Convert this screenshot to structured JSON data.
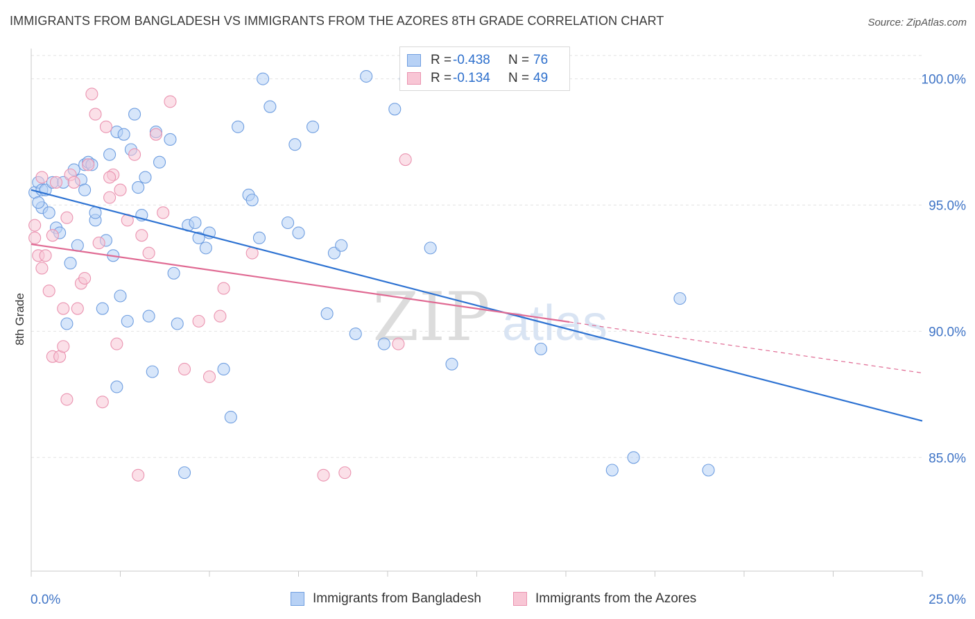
{
  "header": {
    "title": "IMMIGRANTS FROM BANGLADESH VS IMMIGRANTS FROM THE AZORES 8TH GRADE CORRELATION CHART",
    "source": "Source: ZipAtlas.com"
  },
  "stats": {
    "rows": [
      {
        "r_label": "R =",
        "r_value": "-0.438",
        "n_label": "N =",
        "n_value": "76"
      },
      {
        "r_label": "R =",
        "r_value": "-0.134",
        "n_label": "N =",
        "n_value": "49"
      }
    ]
  },
  "legend": {
    "items": [
      "Immigrants from Bangladesh",
      "Immigrants from the Azores"
    ]
  },
  "watermark": {
    "zip": "ZIP",
    "atlas": "atlas"
  },
  "colors": {
    "series1_fill": "#b7d1f5",
    "series1_stroke": "#6f9ee0",
    "series1_line": "#2d72d2",
    "series2_fill": "#f8c6d5",
    "series2_stroke": "#ea93b0",
    "series2_line": "#e06a93",
    "tick_label": "#3f74c6",
    "grid": "#e2e2e2"
  },
  "chart_data": {
    "type": "scatter",
    "title": "IMMIGRANTS FROM BANGLADESH VS IMMIGRANTS FROM THE AZORES 8TH GRADE CORRELATION CHART",
    "xlabel": "",
    "ylabel": "8th Grade",
    "xlim": [
      0,
      25
    ],
    "ylim": [
      80.5,
      101.2
    ],
    "x_tick_labels": [
      "0.0%",
      "25.0%"
    ],
    "y_ticks": [
      85,
      90,
      95,
      100
    ],
    "y_tick_labels": [
      "85.0%",
      "90.0%",
      "95.0%",
      "100.0%"
    ],
    "grid": true,
    "legend_position": "bottom",
    "series": [
      {
        "name": "Immigrants from Bangladesh",
        "r": -0.438,
        "n": 76,
        "trend": {
          "x": [
            0,
            25
          ],
          "y": [
            95.6,
            86.45
          ],
          "dashed_from": null
        },
        "points": [
          [
            0.1,
            95.5
          ],
          [
            0.2,
            95.9
          ],
          [
            0.3,
            95.6
          ],
          [
            0.3,
            94.9
          ],
          [
            0.4,
            95.6
          ],
          [
            0.5,
            94.7
          ],
          [
            0.6,
            95.9
          ],
          [
            0.7,
            94.1
          ],
          [
            0.8,
            93.9
          ],
          [
            0.9,
            95.9
          ],
          [
            1.0,
            90.3
          ],
          [
            1.1,
            92.7
          ],
          [
            1.2,
            96.4
          ],
          [
            1.3,
            93.4
          ],
          [
            1.4,
            96.0
          ],
          [
            1.5,
            96.6
          ],
          [
            1.5,
            95.6
          ],
          [
            1.6,
            96.7
          ],
          [
            1.7,
            96.6
          ],
          [
            1.8,
            94.4
          ],
          [
            1.8,
            94.7
          ],
          [
            2.0,
            90.9
          ],
          [
            2.1,
            93.6
          ],
          [
            2.2,
            97.0
          ],
          [
            2.3,
            93.0
          ],
          [
            2.4,
            87.8
          ],
          [
            2.4,
            97.9
          ],
          [
            2.5,
            91.4
          ],
          [
            2.6,
            97.8
          ],
          [
            2.7,
            90.4
          ],
          [
            2.8,
            97.2
          ],
          [
            2.9,
            98.6
          ],
          [
            3.0,
            95.7
          ],
          [
            3.1,
            94.6
          ],
          [
            3.2,
            96.1
          ],
          [
            3.3,
            90.6
          ],
          [
            3.4,
            88.4
          ],
          [
            3.5,
            97.9
          ],
          [
            3.6,
            96.7
          ],
          [
            3.9,
            97.6
          ],
          [
            4.0,
            92.3
          ],
          [
            4.1,
            90.3
          ],
          [
            4.3,
            84.4
          ],
          [
            4.4,
            94.2
          ],
          [
            4.6,
            94.3
          ],
          [
            4.7,
            93.7
          ],
          [
            4.9,
            93.3
          ],
          [
            5.0,
            93.9
          ],
          [
            5.4,
            88.5
          ],
          [
            5.6,
            86.6
          ],
          [
            5.8,
            98.1
          ],
          [
            6.1,
            95.4
          ],
          [
            6.2,
            95.2
          ],
          [
            6.4,
            93.7
          ],
          [
            6.5,
            100.0
          ],
          [
            6.7,
            98.9
          ],
          [
            7.2,
            94.3
          ],
          [
            7.4,
            97.4
          ],
          [
            7.5,
            93.9
          ],
          [
            7.9,
            98.1
          ],
          [
            8.3,
            90.7
          ],
          [
            8.5,
            93.1
          ],
          [
            8.7,
            93.4
          ],
          [
            9.1,
            89.9
          ],
          [
            9.4,
            100.1
          ],
          [
            9.9,
            89.5
          ],
          [
            10.2,
            98.8
          ],
          [
            10.5,
            100.0
          ],
          [
            11.2,
            93.3
          ],
          [
            11.8,
            88.7
          ],
          [
            14.3,
            89.3
          ],
          [
            16.3,
            84.5
          ],
          [
            16.9,
            85.0
          ],
          [
            18.2,
            91.3
          ],
          [
            19.0,
            84.5
          ],
          [
            0.2,
            95.1
          ]
        ]
      },
      {
        "name": "Immigrants from the Azores",
        "r": -0.134,
        "n": 49,
        "trend": {
          "x": [
            0,
            25
          ],
          "y": [
            93.45,
            88.35
          ],
          "dashed_from": 15.1
        },
        "points": [
          [
            0.1,
            94.2
          ],
          [
            0.1,
            93.7
          ],
          [
            0.2,
            93.0
          ],
          [
            0.3,
            92.5
          ],
          [
            0.3,
            96.1
          ],
          [
            0.4,
            93.0
          ],
          [
            0.5,
            91.6
          ],
          [
            0.6,
            89.0
          ],
          [
            0.6,
            93.8
          ],
          [
            0.7,
            95.9
          ],
          [
            0.8,
            89.0
          ],
          [
            0.9,
            89.4
          ],
          [
            1.0,
            87.3
          ],
          [
            1.0,
            94.5
          ],
          [
            1.1,
            96.2
          ],
          [
            1.2,
            95.9
          ],
          [
            1.3,
            90.9
          ],
          [
            1.4,
            91.9
          ],
          [
            1.5,
            92.1
          ],
          [
            1.7,
            99.4
          ],
          [
            1.8,
            98.6
          ],
          [
            1.9,
            93.5
          ],
          [
            2.0,
            87.2
          ],
          [
            2.1,
            98.1
          ],
          [
            2.2,
            95.3
          ],
          [
            2.3,
            96.2
          ],
          [
            2.4,
            89.5
          ],
          [
            2.5,
            95.6
          ],
          [
            2.7,
            94.4
          ],
          [
            2.9,
            97.0
          ],
          [
            3.0,
            84.3
          ],
          [
            3.1,
            93.8
          ],
          [
            3.3,
            93.1
          ],
          [
            3.5,
            97.8
          ],
          [
            3.7,
            94.7
          ],
          [
            3.9,
            99.1
          ],
          [
            4.3,
            88.5
          ],
          [
            4.7,
            90.4
          ],
          [
            5.0,
            88.2
          ],
          [
            5.3,
            90.6
          ],
          [
            5.4,
            91.7
          ],
          [
            6.2,
            93.1
          ],
          [
            8.2,
            84.3
          ],
          [
            8.8,
            84.4
          ],
          [
            10.3,
            89.5
          ],
          [
            10.5,
            96.8
          ],
          [
            1.6,
            96.6
          ],
          [
            0.9,
            90.9
          ],
          [
            2.2,
            96.1
          ]
        ]
      }
    ]
  }
}
